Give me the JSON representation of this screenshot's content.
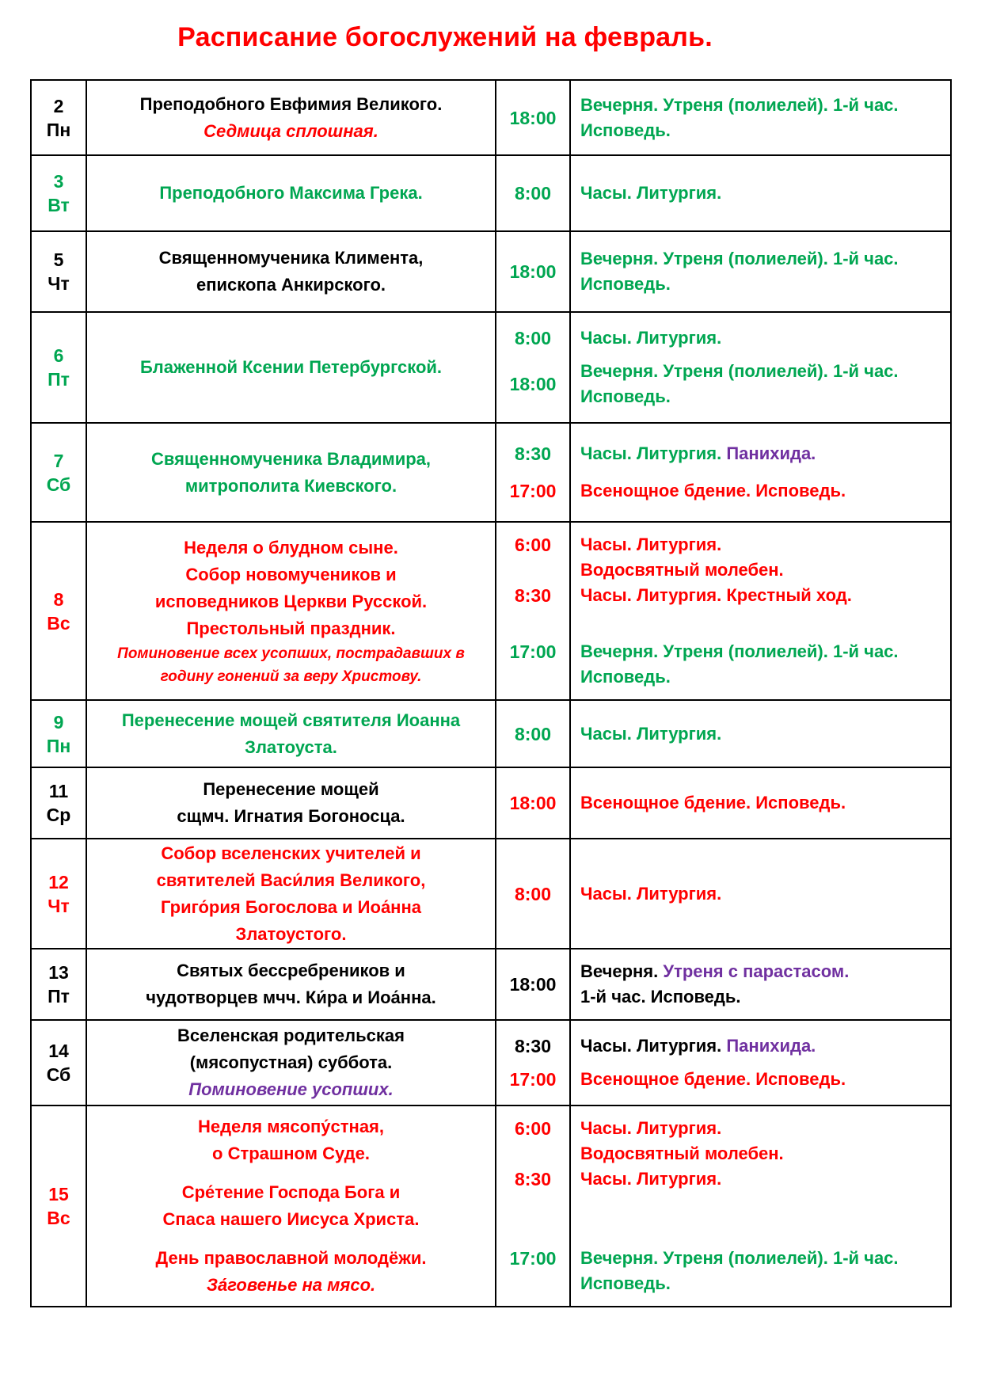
{
  "title": "Расписание богослужений на февраль.",
  "palette": {
    "k": "#000000",
    "r": "#FF0000",
    "g": "#00A651",
    "p": "#7030A0"
  },
  "title_color": "r",
  "rows": [
    {
      "day": {
        "n": "2",
        "a": "Пн",
        "c": "k"
      },
      "desc": [
        {
          "t": "Преподобного Евфимия Великого.",
          "c": "k"
        },
        {
          "t": "Седмица сплошная.",
          "c": "r",
          "i": 1
        }
      ],
      "sched": [
        [
          {
            "time": "18:00",
            "tc": "g",
            "lines": [
              [
                {
                  "t": "Вечерня. Утреня (полиелей). 1-й час.",
                  "c": "g"
                }
              ],
              [
                {
                  "t": "Исповедь.",
                  "c": "g"
                }
              ]
            ]
          }
        ]
      ]
    },
    {
      "day": {
        "n": "3",
        "a": "Вт",
        "c": "g"
      },
      "desc": [
        {
          "t": "Преподобного Максима Грека.",
          "c": "g"
        }
      ],
      "sched": [
        [
          {
            "time": "8:00",
            "tc": "g",
            "lines": [
              [
                {
                  "t": "Часы. Литургия.",
                  "c": "g"
                }
              ]
            ]
          }
        ]
      ]
    },
    {
      "day": {
        "n": "5",
        "a": "Чт",
        "c": "k"
      },
      "desc": [
        {
          "t": "Священномученика Климента,",
          "c": "k"
        },
        {
          "t": "епископа Анкирского.",
          "c": "k"
        }
      ],
      "sched": [
        [
          {
            "time": "18:00",
            "tc": "g",
            "lines": [
              [
                {
                  "t": "Вечерня. Утреня (полиелей). 1-й час.",
                  "c": "g"
                }
              ],
              [
                {
                  "t": "Исповедь.",
                  "c": "g"
                }
              ]
            ]
          }
        ]
      ]
    },
    {
      "day": {
        "n": "6",
        "a": "Пт",
        "c": "g"
      },
      "desc": [
        {
          "t": "Блаженной Ксении Петербургской.",
          "c": "g"
        }
      ],
      "sched": [
        [
          {
            "time": "8:00",
            "tc": "g",
            "lines": [
              [
                {
                  "t": "Часы. Литургия.",
                  "c": "g"
                }
              ]
            ]
          }
        ],
        [
          {
            "time": "18:00",
            "tc": "g",
            "lines": [
              [
                {
                  "t": "Вечерня. Утреня (полиелей). 1-й час.",
                  "c": "g"
                }
              ],
              [
                {
                  "t": "Исповедь.",
                  "c": "g"
                }
              ]
            ]
          }
        ]
      ]
    },
    {
      "day": {
        "n": "7",
        "a": "Сб",
        "c": "g"
      },
      "desc": [
        {
          "t": "Священномученика Владимира,",
          "c": "g"
        },
        {
          "t": "митрополита Киевского.",
          "c": "g"
        }
      ],
      "sched": [
        [
          {
            "time": "8:30",
            "tc": "g",
            "lines": [
              [
                {
                  "t": "Часы. Литургия. ",
                  "c": "g"
                },
                {
                  "t": "Панихида.",
                  "c": "p"
                }
              ]
            ]
          }
        ],
        [
          {
            "time": "17:00",
            "tc": "r",
            "lines": [
              [
                {
                  "t": "Всенощное бдение. Исповедь.",
                  "c": "r"
                }
              ]
            ]
          }
        ]
      ]
    },
    {
      "day": {
        "n": "8",
        "a": "Вс",
        "c": "r"
      },
      "justify": "between",
      "desc": [
        {
          "t": "Неделя о блудном сыне.",
          "c": "r"
        },
        {
          "t": "Собор новомучеников и",
          "c": "r"
        },
        {
          "t": "исповедников Церкви Русской.",
          "c": "r"
        },
        {
          "t": "Престольный праздник.",
          "c": "r"
        },
        {
          "t": "Поминовение всех усопших, пострадавших в",
          "c": "r",
          "i": 1,
          "s": 1
        },
        {
          "t": "годину гонений за веру Христову.",
          "c": "r",
          "i": 1,
          "s": 1
        }
      ],
      "sched": [
        [
          {
            "time": "6:00",
            "tc": "r",
            "va": "top",
            "lines": [
              [
                {
                  "t": "Часы. Литургия.",
                  "c": "r"
                }
              ],
              [
                {
                  "t": "Водосвятный молебен.",
                  "c": "r"
                }
              ]
            ]
          },
          {
            "time": "8:30",
            "tc": "r",
            "va": "top",
            "lines": [
              [
                {
                  "t": "Часы. Литургия. Крестный ход.",
                  "c": "r"
                }
              ]
            ]
          }
        ],
        [
          {
            "time": "17:00",
            "tc": "g",
            "va": "top",
            "lines": [
              [
                {
                  "t": "Вечерня. Утреня (полиелей). 1-й час.",
                  "c": "g"
                }
              ],
              [
                {
                  "t": "Исповедь.",
                  "c": "g"
                }
              ]
            ]
          }
        ]
      ]
    },
    {
      "day": {
        "n": "9",
        "a": "Пн",
        "c": "g"
      },
      "desc": [
        {
          "t": "Перенесение мощей святителя Иоанна",
          "c": "g"
        },
        {
          "t": "Златоуста.",
          "c": "g"
        }
      ],
      "sched": [
        [
          {
            "time": "8:00",
            "tc": "g",
            "lines": [
              [
                {
                  "t": "Часы. Литургия.",
                  "c": "g"
                }
              ]
            ]
          }
        ]
      ]
    },
    {
      "day": {
        "n": "11",
        "a": "Ср",
        "c": "k"
      },
      "desc": [
        {
          "t": "Перенесение мощей",
          "c": "k"
        },
        {
          "t": "сщмч. Игнатия Богоносца.",
          "c": "k"
        }
      ],
      "sched": [
        [
          {
            "time": "18:00",
            "tc": "r",
            "lines": [
              [
                {
                  "t": "Всенощное бдение. Исповедь.",
                  "c": "r"
                }
              ]
            ]
          }
        ]
      ]
    },
    {
      "day": {
        "n": "12",
        "a": "Чт",
        "c": "r"
      },
      "desc": [
        {
          "t": "Собор вселенских учителей и",
          "c": "r"
        },
        {
          "t": "святителей Васи́лия Великого,",
          "c": "r"
        },
        {
          "t": "Григо́рия Богослова и Иоа́нна",
          "c": "r"
        },
        {
          "t": "Златоустого.",
          "c": "r"
        }
      ],
      "sched": [
        [
          {
            "time": "8:00",
            "tc": "r",
            "lines": [
              [
                {
                  "t": "Часы. Литургия.",
                  "c": "r"
                }
              ]
            ]
          }
        ]
      ]
    },
    {
      "day": {
        "n": "13",
        "a": "Пт",
        "c": "k"
      },
      "desc": [
        {
          "t": "Святых бессребреников и",
          "c": "k"
        },
        {
          "t": "чудотворцев мчч. Ки́ра и Иоа́нна.",
          "c": "k"
        }
      ],
      "sched": [
        [
          {
            "time": "18:00",
            "tc": "k",
            "lines": [
              [
                {
                  "t": "Вечерня. ",
                  "c": "k"
                },
                {
                  "t": "Утреня с парастасом.",
                  "c": "p"
                }
              ],
              [
                {
                  "t": "1-й час. Исповедь.",
                  "c": "k"
                }
              ]
            ]
          }
        ]
      ]
    },
    {
      "day": {
        "n": "14",
        "a": "Сб",
        "c": "k"
      },
      "desc": [
        {
          "t": "Вселенская родительская",
          "c": "k"
        },
        {
          "t": "(мясопустная) суббота.",
          "c": "k"
        },
        {
          "t": "Поминовение усопших.",
          "c": "p",
          "i": 1
        }
      ],
      "sched": [
        [
          {
            "time": "8:30",
            "tc": "k",
            "lines": [
              [
                {
                  "t": "Часы. Литургия. ",
                  "c": "k"
                },
                {
                  "t": "Панихида.",
                  "c": "p"
                }
              ]
            ]
          }
        ],
        [
          {
            "time": "17:00",
            "tc": "r",
            "lines": [
              [
                {
                  "t": "Всенощное бдение. Исповедь.",
                  "c": "r"
                }
              ]
            ]
          }
        ]
      ]
    },
    {
      "day": {
        "n": "15",
        "a": "Вс",
        "c": "r"
      },
      "justify": "between",
      "desc": [
        {
          "t": "Неделя мясопу́стная,",
          "c": "r"
        },
        {
          "t": "о Страшном Суде.",
          "c": "r"
        },
        {
          "t": "Сре́тение Господа Бога и",
          "c": "r",
          "g": 1
        },
        {
          "t": "Спаса нашего Иисуса Христа.",
          "c": "r"
        },
        {
          "t": "День православной молодёжи.",
          "c": "r",
          "g": 1
        },
        {
          "t": "За́говенье на мясо.",
          "c": "r",
          "i": 1
        }
      ],
      "sched": [
        [
          {
            "time": "6:00",
            "tc": "r",
            "va": "top",
            "lines": [
              [
                {
                  "t": "Часы. Литургия.",
                  "c": "r"
                }
              ],
              [
                {
                  "t": "Водосвятный молебен.",
                  "c": "r"
                }
              ]
            ]
          },
          {
            "time": "8:30",
            "tc": "r",
            "va": "top",
            "lines": [
              [
                {
                  "t": "Часы. Литургия.",
                  "c": "r"
                }
              ]
            ]
          }
        ],
        [
          {
            "time": "17:00",
            "tc": "g",
            "va": "top",
            "lines": [
              [
                {
                  "t": "Вечерня. Утреня (полиелей). 1-й час.",
                  "c": "g"
                }
              ],
              [
                {
                  "t": "Исповедь.",
                  "c": "g"
                }
              ]
            ]
          }
        ]
      ]
    }
  ]
}
